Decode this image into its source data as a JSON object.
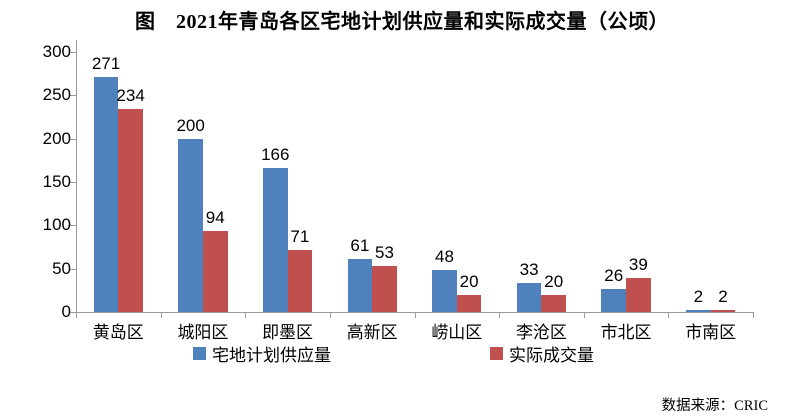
{
  "source_note": "数据来源：CRIC",
  "colors": {
    "series1": "#4F81BD",
    "series2": "#C0504D",
    "axis": "#9B9B9B",
    "text": "#000000",
    "background": "#FFFFFF"
  },
  "chart_data": {
    "type": "bar",
    "title": "图　2021年青岛各区宅地计划供应量和实际成交量（公顷）",
    "categories": [
      "黄岛区",
      "城阳区",
      "即墨区",
      "高新区",
      "崂山区",
      "李沧区",
      "市北区",
      "市南区"
    ],
    "series": [
      {
        "name": "宅地计划供应量",
        "color": "#4F81BD",
        "values": [
          271,
          200,
          166,
          61,
          48,
          33,
          26,
          2
        ]
      },
      {
        "name": "实际成交量",
        "color": "#C0504D",
        "values": [
          234,
          94,
          71,
          53,
          20,
          20,
          39,
          2
        ]
      }
    ],
    "xlabel": "",
    "ylabel": "",
    "unit": "公顷",
    "ylim": [
      0,
      300
    ],
    "ytick_step": 50,
    "yticks": [
      0,
      50,
      100,
      150,
      200,
      250,
      300
    ],
    "grid": false,
    "data_labels": true,
    "legend_position": "bottom"
  }
}
